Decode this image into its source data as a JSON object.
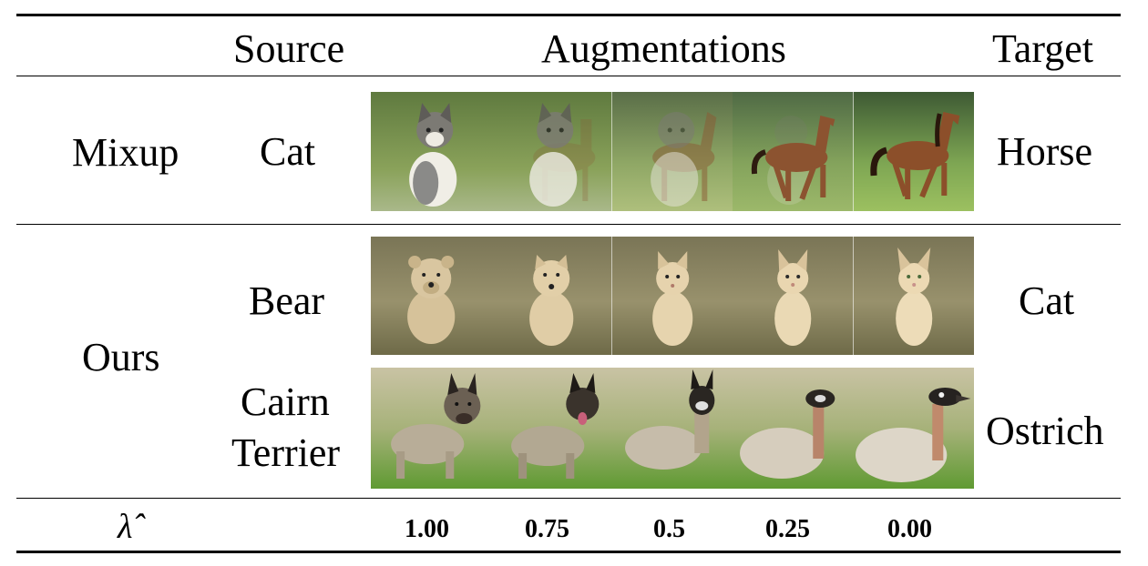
{
  "header": {
    "source": "Source",
    "augmentations": "Augmentations",
    "target": "Target"
  },
  "rows": {
    "mixup": {
      "method": "Mixup",
      "source": "Cat",
      "target": "Horse"
    },
    "ours_1": {
      "method": "Ours",
      "source": "Bear",
      "target": "Cat"
    },
    "ours_2": {
      "source_line1": "Cairn",
      "source_line2": "Terrier",
      "target": "Ostrich"
    }
  },
  "lambda_row": {
    "symbol": "λ̂",
    "values": [
      "1.00",
      "0.75",
      "0.5",
      "0.25",
      "0.00"
    ]
  },
  "image_strips": {
    "mixup": {
      "frames": [
        "cat",
        "cat+horse",
        "cat+horse",
        "horse",
        "horse"
      ]
    },
    "bear_to_cat": {
      "frames": [
        "bear",
        "bear-cat",
        "cat-like",
        "cat-like",
        "cat"
      ]
    },
    "terrier_to_ostrich": {
      "frames": [
        "terrier",
        "terrier-like",
        "llama-like",
        "ostrich-like",
        "ostrich"
      ]
    }
  }
}
